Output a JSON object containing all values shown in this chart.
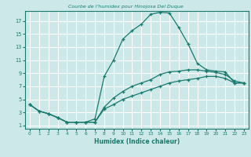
{
  "title": "Courbe de l’humidex pour Hinojosa Del Duque",
  "xlabel": "Humidex (Indice chaleur)",
  "xlim": [
    -0.5,
    23.5
  ],
  "ylim": [
    0.5,
    18.5
  ],
  "yticks": [
    1,
    3,
    5,
    7,
    9,
    11,
    13,
    15,
    17
  ],
  "xticks": [
    0,
    1,
    2,
    3,
    4,
    5,
    6,
    7,
    8,
    9,
    10,
    11,
    12,
    13,
    14,
    15,
    16,
    17,
    18,
    19,
    20,
    21,
    22,
    23
  ],
  "bg_color": "#cce8e8",
  "grid_color": "#ffffff",
  "line_color": "#1a7a6e",
  "curves": [
    {
      "x": [
        0,
        1,
        2,
        3,
        4,
        5,
        6,
        7,
        8,
        9,
        10,
        11,
        12,
        13,
        14,
        15,
        16,
        17,
        18,
        19,
        20,
        21,
        22,
        23
      ],
      "y": [
        4.2,
        3.2,
        2.8,
        2.2,
        1.5,
        1.5,
        1.5,
        2.0,
        8.5,
        11.0,
        14.2,
        15.5,
        16.5,
        18.0,
        18.3,
        18.2,
        16.0,
        13.5,
        10.5,
        9.5,
        9.3,
        9.2,
        7.5,
        7.5
      ]
    },
    {
      "x": [
        0,
        1,
        2,
        3,
        4,
        5,
        6,
        7,
        8,
        9,
        10,
        11,
        12,
        13,
        14,
        15,
        16,
        17,
        18,
        19,
        20,
        21,
        22,
        23
      ],
      "y": [
        4.2,
        3.2,
        2.8,
        2.2,
        1.5,
        1.5,
        1.5,
        1.5,
        3.8,
        5.2,
        6.2,
        7.0,
        7.5,
        8.0,
        8.8,
        9.2,
        9.3,
        9.5,
        9.5,
        9.3,
        9.1,
        8.8,
        7.8,
        7.5
      ]
    },
    {
      "x": [
        0,
        1,
        2,
        3,
        4,
        5,
        6,
        7,
        8,
        9,
        10,
        11,
        12,
        13,
        14,
        15,
        16,
        17,
        18,
        19,
        20,
        21,
        22,
        23
      ],
      "y": [
        4.2,
        3.2,
        2.8,
        2.2,
        1.5,
        1.5,
        1.5,
        1.5,
        3.5,
        4.2,
        5.0,
        5.5,
        6.0,
        6.5,
        7.0,
        7.5,
        7.8,
        8.0,
        8.2,
        8.5,
        8.5,
        8.2,
        7.5,
        7.5
      ]
    }
  ]
}
